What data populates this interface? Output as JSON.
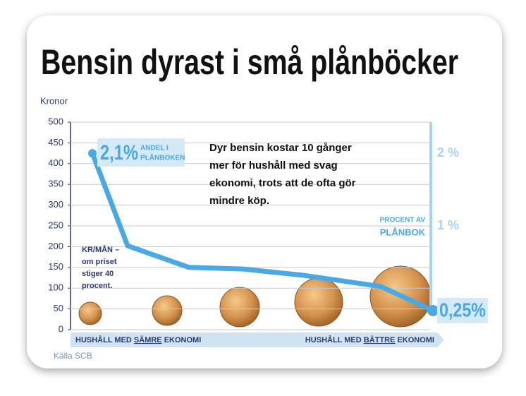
{
  "chart_data": {
    "type": "line",
    "title": "Bensin dyrast i små plånböcker",
    "y_label": "Kronor",
    "categories": [
      null,
      null,
      null,
      null,
      null,
      null,
      null
    ],
    "values": [
      425,
      202,
      150,
      146,
      131,
      104,
      46
    ],
    "color": "#4aa8e4",
    "ylim": [
      0,
      500
    ],
    "yticks": [
      0,
      50,
      100,
      150,
      200,
      250,
      300,
      350,
      400,
      450,
      500
    ],
    "grid": true,
    "annotations": {
      "start_value": "2,1%",
      "start_note": [
        "ANDEL I",
        "PLÅNBOKEN"
      ],
      "end_value": "0,25%",
      "body": [
        "Dyr bensin kostar 10 gånger",
        "mer för hushåll med svag",
        "ekonomi, trots att de ofta gör",
        "mindre köp."
      ],
      "left_note": [
        "KR/MÅN –",
        "om priset",
        "stiger 40",
        "procent."
      ],
      "right_axis_title": [
        "PROCENT AV",
        "PLÅNBOK"
      ],
      "right_axis_labels": [
        "2 %",
        "1 %"
      ],
      "bottom_left": [
        "HUSHÅLL MED ",
        "SÄMRE",
        " EKONOMI"
      ],
      "bottom_right": [
        "HUSHÅLL MED ",
        "BÄTTRE",
        " EKONOMI"
      ],
      "source": "Källa SCB"
    }
  }
}
